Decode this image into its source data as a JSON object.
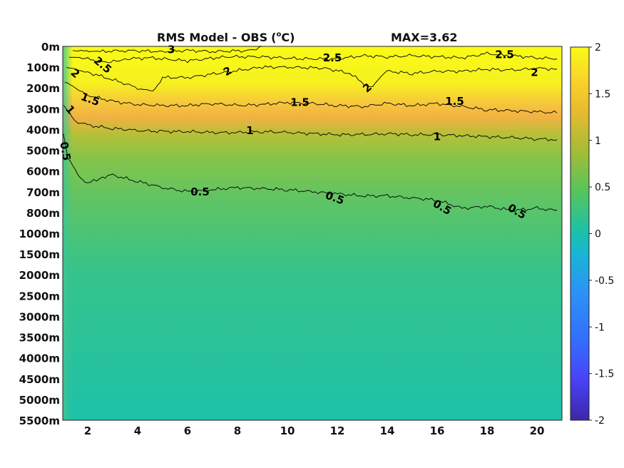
{
  "chart_data": {
    "type": "heatmap",
    "title": "RMS Model - OBS",
    "title_unit_prefix": "(",
    "title_unit_sup": "o",
    "title_unit_suffix": "C)",
    "max_label": "MAX=3.62",
    "x": {
      "range": [
        1,
        21
      ],
      "ticks": [
        2,
        4,
        6,
        8,
        10,
        12,
        14,
        16,
        18,
        20
      ]
    },
    "y": {
      "depth_labels": [
        "0m",
        "100m",
        "200m",
        "300m",
        "400m",
        "500m",
        "600m",
        "700m",
        "800m",
        "1000m",
        "1500m",
        "2000m",
        "2500m",
        "3000m",
        "3500m",
        "4000m",
        "4500m",
        "5000m",
        "5500m"
      ]
    },
    "colorbar": {
      "range": [
        -2,
        2
      ],
      "ticks": [
        "2",
        "1.5",
        "1",
        "0.5",
        "0",
        "-0.5",
        "-1",
        "-1.5",
        "-2"
      ],
      "colormap": [
        "#3e26a8",
        "#4743f8",
        "#2e8ef8",
        "#1ab3d9",
        "#19c1ac",
        "#54c55f",
        "#a3bd35",
        "#eaba30",
        "#fbd629",
        "#f9fb15"
      ]
    },
    "contours": [
      {
        "level": 3,
        "label": "3",
        "points": [
          [
            1.4,
            0.2
          ],
          [
            2.5,
            0.25
          ],
          [
            3.5,
            0.2
          ],
          [
            5,
            0.25
          ],
          [
            6,
            0.2
          ],
          [
            7,
            0.25
          ],
          [
            8.5,
            0.2
          ],
          [
            9,
            0
          ]
        ]
      },
      {
        "level": 2.5,
        "label": "2.5",
        "points": [
          [
            1.25,
            0.5
          ],
          [
            2,
            0.6
          ],
          [
            2.8,
            0.8
          ],
          [
            3.5,
            0.6
          ],
          [
            4.5,
            0.55
          ],
          [
            6,
            0.7
          ],
          [
            7.5,
            0.5
          ],
          [
            9,
            0.5
          ],
          [
            10.5,
            0.6
          ],
          [
            12,
            0.6
          ],
          [
            13,
            0.45
          ],
          [
            14,
            0.5
          ],
          [
            15,
            0.45
          ],
          [
            16,
            0.5
          ],
          [
            17,
            0.55
          ],
          [
            18,
            0.35
          ],
          [
            19,
            0.45
          ],
          [
            20,
            0.55
          ],
          [
            20.8,
            0.6
          ]
        ]
      },
      {
        "level": 2,
        "label": "2",
        "points": [
          [
            1.15,
            1.0
          ],
          [
            2,
            1.25
          ],
          [
            3,
            1.6
          ],
          [
            4,
            2.0
          ],
          [
            4.6,
            2.2
          ],
          [
            5,
            1.5
          ],
          [
            6,
            1.5
          ],
          [
            7.5,
            1.25
          ],
          [
            9,
            1.0
          ],
          [
            10,
            1.0
          ],
          [
            11.5,
            1.05
          ],
          [
            12.5,
            1.3
          ],
          [
            13.3,
            2.0
          ],
          [
            14,
            1.2
          ],
          [
            15,
            1.3
          ],
          [
            16,
            1.2
          ],
          [
            17,
            1.2
          ],
          [
            18,
            1.1
          ],
          [
            19,
            1.15
          ],
          [
            20,
            1.05
          ],
          [
            20.8,
            1.1
          ]
        ]
      },
      {
        "level": 1.5,
        "label": "1.5",
        "points": [
          [
            1.08,
            1.7
          ],
          [
            2,
            2.35
          ],
          [
            3,
            2.65
          ],
          [
            4,
            2.8
          ],
          [
            5,
            2.85
          ],
          [
            6,
            2.85
          ],
          [
            7,
            2.75
          ],
          [
            8,
            2.85
          ],
          [
            9,
            2.8
          ],
          [
            10,
            2.7
          ],
          [
            11,
            2.75
          ],
          [
            12,
            2.85
          ],
          [
            13,
            2.9
          ],
          [
            14,
            2.75
          ],
          [
            15,
            2.85
          ],
          [
            16,
            2.75
          ],
          [
            17,
            2.9
          ],
          [
            18,
            3.05
          ],
          [
            19,
            3.1
          ],
          [
            20,
            3.15
          ],
          [
            20.8,
            3.2
          ]
        ]
      },
      {
        "level": 1,
        "label": "1",
        "points": [
          [
            1.04,
            2.85
          ],
          [
            1.5,
            3.6
          ],
          [
            2,
            3.8
          ],
          [
            3,
            3.95
          ],
          [
            4,
            4.05
          ],
          [
            5,
            4.1
          ],
          [
            6,
            4.1
          ],
          [
            7,
            4.15
          ],
          [
            8,
            4.15
          ],
          [
            9,
            4.1
          ],
          [
            10,
            4.15
          ],
          [
            11,
            4.2
          ],
          [
            12,
            4.25
          ],
          [
            13,
            4.25
          ],
          [
            14,
            4.2
          ],
          [
            15,
            4.25
          ],
          [
            16,
            4.25
          ],
          [
            17,
            4.3
          ],
          [
            18,
            4.35
          ],
          [
            19,
            4.4
          ],
          [
            20,
            4.45
          ],
          [
            20.8,
            4.5
          ]
        ]
      },
      {
        "level": 0.5,
        "label": "0.5",
        "points": [
          [
            1.02,
            4.2
          ],
          [
            1.2,
            5.3
          ],
          [
            1.6,
            6.2
          ],
          [
            2,
            6.6
          ],
          [
            2.6,
            6.3
          ],
          [
            3,
            6.2
          ],
          [
            4,
            6.5
          ],
          [
            5,
            6.8
          ],
          [
            6,
            7.0
          ],
          [
            7,
            6.9
          ],
          [
            8,
            6.8
          ],
          [
            9,
            6.85
          ],
          [
            10,
            6.9
          ],
          [
            11,
            7.0
          ],
          [
            12,
            7.1
          ],
          [
            13,
            7.2
          ],
          [
            14,
            7.2
          ],
          [
            15,
            7.3
          ],
          [
            16,
            7.4
          ],
          [
            17,
            7.8
          ],
          [
            18,
            7.7
          ],
          [
            19,
            7.9
          ],
          [
            20,
            7.8
          ],
          [
            20.8,
            7.9
          ]
        ]
      }
    ],
    "contour_labels": [
      {
        "text": "3",
        "x": 5.35,
        "y": 0.15,
        "angle": 0
      },
      {
        "text": "2.5",
        "x": 2.6,
        "y": 0.9,
        "angle": 40
      },
      {
        "text": "2.5",
        "x": 11.8,
        "y": 0.55,
        "angle": 0
      },
      {
        "text": "2.5",
        "x": 18.7,
        "y": 0.4,
        "angle": 0
      },
      {
        "text": "2",
        "x": 1.5,
        "y": 1.3,
        "angle": 40
      },
      {
        "text": "2",
        "x": 7.6,
        "y": 1.2,
        "angle": -30
      },
      {
        "text": "2",
        "x": 13.2,
        "y": 2.0,
        "angle": -40
      },
      {
        "text": "2",
        "x": 19.9,
        "y": 1.25,
        "angle": 0
      },
      {
        "text": "1.5",
        "x": 2.1,
        "y": 2.55,
        "angle": 20
      },
      {
        "text": "1.5",
        "x": 10.5,
        "y": 2.7,
        "angle": 0
      },
      {
        "text": "1.5",
        "x": 16.7,
        "y": 2.65,
        "angle": 0
      },
      {
        "text": "1",
        "x": 1.3,
        "y": 3.05,
        "angle": 50
      },
      {
        "text": "1",
        "x": 8.5,
        "y": 4.05,
        "angle": 0
      },
      {
        "text": "1",
        "x": 16,
        "y": 4.35,
        "angle": 0
      },
      {
        "text": "0.5",
        "x": 1.1,
        "y": 5.05,
        "angle": 80
      },
      {
        "text": "0.5",
        "x": 6.5,
        "y": 7.0,
        "angle": 0
      },
      {
        "text": "0.5",
        "x": 11.9,
        "y": 7.3,
        "angle": 20
      },
      {
        "text": "0.5",
        "x": 16.2,
        "y": 7.75,
        "angle": 30
      },
      {
        "text": "0.5",
        "x": 19.2,
        "y": 7.95,
        "angle": 30
      }
    ]
  }
}
